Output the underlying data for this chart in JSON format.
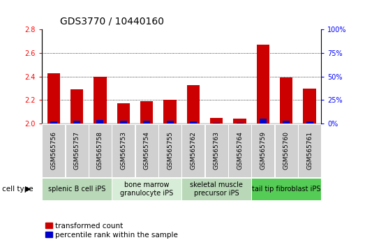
{
  "title": "GDS3770 / 10440160",
  "samples": [
    "GSM565756",
    "GSM565757",
    "GSM565758",
    "GSM565753",
    "GSM565754",
    "GSM565755",
    "GSM565762",
    "GSM565763",
    "GSM565764",
    "GSM565759",
    "GSM565760",
    "GSM565761"
  ],
  "transformed_count": [
    2.43,
    2.29,
    2.4,
    2.17,
    2.19,
    2.2,
    2.33,
    2.05,
    2.04,
    2.67,
    2.39,
    2.3
  ],
  "percentile_rank": [
    2,
    3,
    4,
    3,
    3,
    3,
    2,
    1,
    1,
    5,
    3,
    2
  ],
  "cell_types": [
    {
      "label": "splenic B cell iPS",
      "start": 0,
      "end": 3,
      "color": "#b8d8b8"
    },
    {
      "label": "bone marrow\ngranulocyte iPS",
      "start": 3,
      "end": 6,
      "color": "#d8edd8"
    },
    {
      "label": "skeletal muscle\nprecursor iPS",
      "start": 6,
      "end": 9,
      "color": "#b8d8b8"
    },
    {
      "label": "tail tip fibroblast iPS",
      "start": 9,
      "end": 12,
      "color": "#55cc55"
    }
  ],
  "ylim_left": [
    2.0,
    2.8
  ],
  "ylim_right": [
    0,
    100
  ],
  "yticks_left": [
    2.0,
    2.2,
    2.4,
    2.6,
    2.8
  ],
  "yticks_right": [
    0,
    25,
    50,
    75,
    100
  ],
  "bar_color_red": "#cc0000",
  "bar_color_blue": "#0000cc",
  "bar_width": 0.55,
  "blue_bar_width": 0.3,
  "background_color": "#ffffff",
  "sample_box_color": "#d0d0d0",
  "cell_type_label": "cell type",
  "legend_red": "transformed count",
  "legend_blue": "percentile rank within the sample",
  "title_fontsize": 10,
  "tick_fontsize": 7,
  "sample_fontsize": 6.5,
  "ct_fontsize": 7,
  "legend_fontsize": 7.5,
  "grid_color": "#000000",
  "grid_linestyle": "dotted",
  "grid_linewidth": 0.6
}
